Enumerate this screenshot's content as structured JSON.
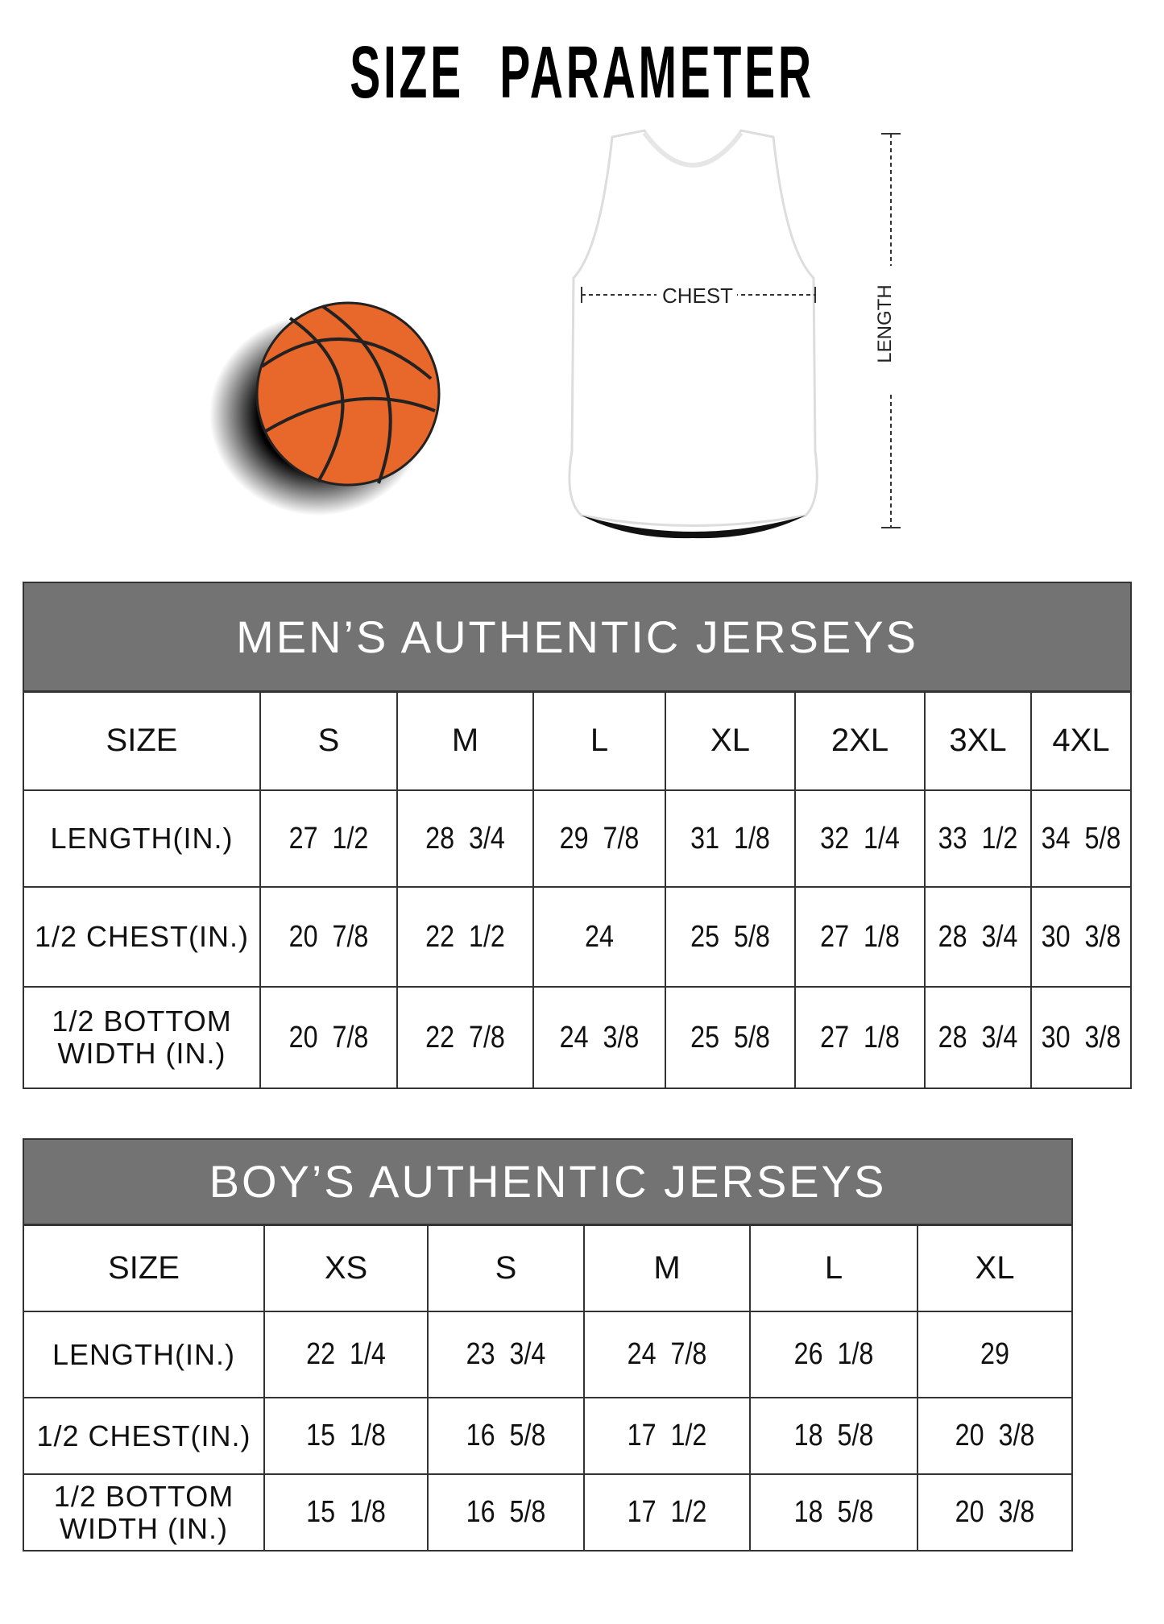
{
  "title": "SIZE PARAMETER",
  "illustration": {
    "chest_label": "CHEST",
    "length_label": "LENGTH",
    "ball_color": "#e8672a"
  },
  "mens": {
    "heading": "MEN’S AUTHENTIC JERSEYS",
    "header_color": "#737373",
    "size_label": "SIZE",
    "sizes": [
      "S",
      "M",
      "L",
      "XL",
      "2XL",
      "3XL",
      "4XL"
    ],
    "rows": [
      {
        "label": "LENGTH(IN.)",
        "values": [
          "27  1/2",
          "28  3/4",
          "29  7/8",
          "31  1/8",
          "32  1/4",
          "33  1/2",
          "34  5/8"
        ]
      },
      {
        "label": "1/2 CHEST(IN.)",
        "values": [
          "20  7/8",
          "22  1/2",
          "24",
          "25  5/8",
          "27  1/8",
          "28  3/4",
          "30  3/8"
        ]
      },
      {
        "label": "1/2 BOTTOM WIDTH  (IN.)",
        "values": [
          "20  7/8",
          "22  7/8",
          "24  3/8",
          "25  5/8",
          "27  1/8",
          "28  3/4",
          "30  3/8"
        ]
      }
    ]
  },
  "boys": {
    "heading": "BOY’S AUTHENTIC JERSEYS",
    "header_color": "#737373",
    "size_label": "SIZE",
    "sizes": [
      "XS",
      "S",
      "M",
      "L",
      "XL"
    ],
    "rows": [
      {
        "label": "LENGTH(IN.)",
        "values": [
          "22  1/4",
          "23  3/4",
          "24  7/8",
          "26  1/8",
          "29"
        ]
      },
      {
        "label": "1/2 CHEST(IN.)",
        "values": [
          "15  1/8",
          "16  5/8",
          "17  1/2",
          "18  5/8",
          "20  3/8"
        ]
      },
      {
        "label": "1/2 BOTTOM WIDTH  (IN.)",
        "values": [
          "15  1/8",
          "16  5/8",
          "17  1/2",
          "18  5/8",
          "20  3/8"
        ]
      }
    ]
  }
}
